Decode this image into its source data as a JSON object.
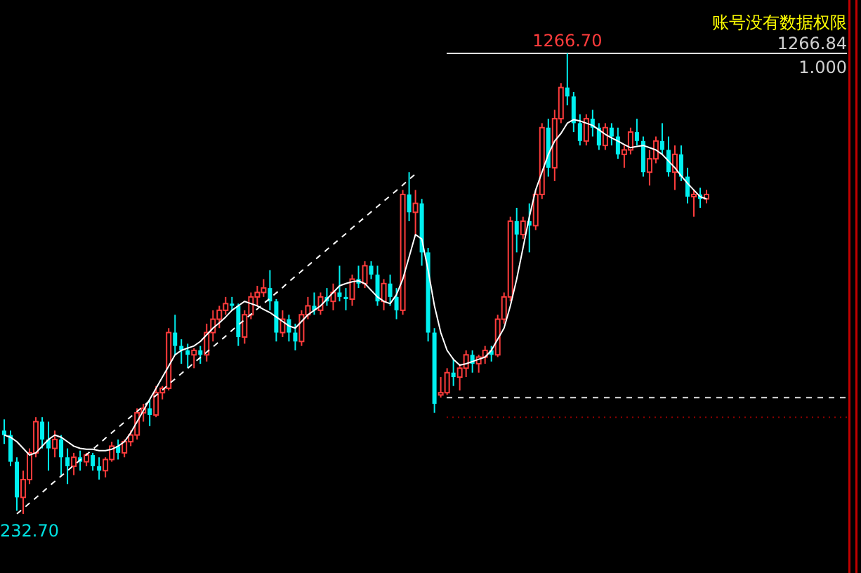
{
  "chart_data": {
    "type": "candlestick",
    "tick_labels": false,
    "categories": [
      null,
      null,
      null,
      null,
      null,
      null,
      null,
      null,
      null,
      null,
      null,
      null,
      null,
      null,
      null,
      null,
      null,
      null,
      null,
      null,
      null,
      null,
      null,
      null,
      null,
      null,
      null,
      null,
      null,
      null,
      null,
      null,
      null,
      null,
      null,
      null,
      null,
      null,
      null,
      null,
      null,
      null,
      null,
      null,
      null,
      null,
      null,
      null,
      null,
      null,
      null,
      null,
      null,
      null,
      null,
      null,
      null,
      null,
      null,
      null,
      null,
      null,
      null,
      null,
      null,
      null,
      null,
      null,
      null,
      null,
      null,
      null,
      null,
      null,
      null,
      null,
      null,
      null,
      null,
      null,
      null,
      null,
      null,
      null,
      null,
      null,
      null,
      null,
      null,
      null,
      null,
      null,
      null,
      null,
      null,
      null,
      null,
      null,
      null,
      null,
      null,
      null,
      null,
      null,
      null,
      null,
      null,
      null,
      null,
      null,
      null,
      null
    ],
    "ohlc": [
      [
        420,
        445,
        390,
        410
      ],
      [
        410,
        420,
        340,
        350
      ],
      [
        350,
        360,
        240,
        270
      ],
      [
        270,
        330,
        232.7,
        310
      ],
      [
        310,
        380,
        300,
        370
      ],
      [
        370,
        450,
        360,
        440
      ],
      [
        440,
        450,
        380,
        400
      ],
      [
        400,
        440,
        330,
        380
      ],
      [
        380,
        420,
        360,
        400
      ],
      [
        400,
        410,
        320,
        360
      ],
      [
        360,
        380,
        300,
        340
      ],
      [
        340,
        370,
        320,
        360
      ],
      [
        360,
        375,
        330,
        350
      ],
      [
        350,
        370,
        340,
        365
      ],
      [
        365,
        370,
        330,
        340
      ],
      [
        340,
        360,
        310,
        330
      ],
      [
        330,
        360,
        315,
        355
      ],
      [
        355,
        395,
        350,
        385
      ],
      [
        385,
        400,
        355,
        370
      ],
      [
        370,
        400,
        360,
        395
      ],
      [
        395,
        420,
        385,
        410
      ],
      [
        410,
        470,
        400,
        460
      ],
      [
        460,
        480,
        440,
        470
      ],
      [
        470,
        490,
        430,
        455
      ],
      [
        455,
        520,
        450,
        505
      ],
      [
        505,
        520,
        490,
        515
      ],
      [
        515,
        650,
        510,
        640
      ],
      [
        640,
        680,
        590,
        610
      ],
      [
        610,
        625,
        570,
        600
      ],
      [
        600,
        615,
        560,
        590
      ],
      [
        590,
        605,
        560,
        600
      ],
      [
        600,
        610,
        570,
        590
      ],
      [
        590,
        660,
        575,
        640
      ],
      [
        640,
        690,
        620,
        670
      ],
      [
        670,
        700,
        650,
        690
      ],
      [
        690,
        720,
        680,
        705
      ],
      [
        705,
        720,
        690,
        700
      ],
      [
        700,
        705,
        610,
        630
      ],
      [
        630,
        690,
        615,
        680
      ],
      [
        680,
        730,
        670,
        720
      ],
      [
        720,
        745,
        700,
        730
      ],
      [
        730,
        760,
        720,
        740
      ],
      [
        740,
        780,
        690,
        710
      ],
      [
        710,
        715,
        620,
        640
      ],
      [
        640,
        690,
        630,
        670
      ],
      [
        670,
        680,
        620,
        640
      ],
      [
        640,
        660,
        600,
        620
      ],
      [
        620,
        690,
        610,
        680
      ],
      [
        680,
        720,
        670,
        700
      ],
      [
        700,
        730,
        680,
        690
      ],
      [
        690,
        730,
        680,
        720
      ],
      [
        720,
        740,
        700,
        710
      ],
      [
        710,
        750,
        690,
        730
      ],
      [
        730,
        790,
        710,
        720
      ],
      [
        720,
        740,
        690,
        715
      ],
      [
        715,
        770,
        700,
        760
      ],
      [
        760,
        790,
        740,
        750
      ],
      [
        750,
        800,
        740,
        790
      ],
      [
        790,
        800,
        760,
        770
      ],
      [
        770,
        790,
        700,
        710
      ],
      [
        710,
        760,
        690,
        750
      ],
      [
        750,
        770,
        700,
        720
      ],
      [
        720,
        740,
        670,
        690
      ],
      [
        690,
        960,
        680,
        950
      ],
      [
        950,
        1000,
        890,
        910
      ],
      [
        910,
        960,
        860,
        930
      ],
      [
        930,
        940,
        790,
        820
      ],
      [
        820,
        830,
        620,
        640
      ],
      [
        640,
        650,
        460,
        480
      ],
      [
        500,
        540,
        494,
        505
      ],
      [
        505,
        560,
        500,
        550
      ],
      [
        550,
        580,
        520,
        540
      ],
      [
        540,
        570,
        510,
        560
      ],
      [
        560,
        600,
        540,
        590
      ],
      [
        590,
        600,
        550,
        570
      ],
      [
        570,
        590,
        550,
        585
      ],
      [
        585,
        610,
        570,
        600
      ],
      [
        600,
        610,
        575,
        590
      ],
      [
        590,
        680,
        585,
        670
      ],
      [
        670,
        730,
        660,
        720
      ],
      [
        720,
        900,
        710,
        890
      ],
      [
        890,
        920,
        820,
        860
      ],
      [
        860,
        900,
        850,
        890
      ],
      [
        890,
        930,
        820,
        880
      ],
      [
        880,
        960,
        870,
        950
      ],
      [
        950,
        1110,
        940,
        1100
      ],
      [
        1100,
        1120,
        990,
        1010
      ],
      [
        1010,
        1140,
        980,
        1120
      ],
      [
        1120,
        1200,
        1110,
        1190
      ],
      [
        1190,
        1266.7,
        1150,
        1170
      ],
      [
        1170,
        1180,
        1090,
        1110
      ],
      [
        1110,
        1130,
        1060,
        1070
      ],
      [
        1070,
        1130,
        1060,
        1120
      ],
      [
        1120,
        1140,
        1080,
        1100
      ],
      [
        1100,
        1110,
        1050,
        1060
      ],
      [
        1060,
        1110,
        1050,
        1100
      ],
      [
        1100,
        1110,
        1060,
        1080
      ],
      [
        1080,
        1100,
        1030,
        1040
      ],
      [
        1040,
        1060,
        1010,
        1050
      ],
      [
        1050,
        1100,
        1040,
        1090
      ],
      [
        1090,
        1120,
        1060,
        1070
      ],
      [
        1070,
        1080,
        990,
        1000
      ],
      [
        1000,
        1050,
        970,
        1030
      ],
      [
        1030,
        1080,
        1020,
        1070
      ],
      [
        1070,
        1110,
        1040,
        1050
      ],
      [
        1050,
        1080,
        990,
        1000
      ],
      [
        1000,
        1060,
        960,
        1040
      ],
      [
        1040,
        1060,
        980,
        990
      ],
      [
        990,
        1010,
        930,
        945
      ],
      [
        945,
        960,
        900,
        950
      ],
      [
        950,
        965,
        920,
        940
      ],
      [
        940,
        960,
        930,
        950
      ]
    ],
    "series": [
      {
        "type": "line",
        "color": "#ffffff",
        "line_style": "solid",
        "values": [
          410,
          405,
          395,
          380,
          365,
          370,
          385,
          400,
          410,
          405,
          395,
          385,
          380,
          378,
          378,
          375,
          375,
          378,
          385,
          395,
          415,
          440,
          465,
          490,
          515,
          540,
          565,
          590,
          600,
          605,
          610,
          620,
          635,
          650,
          662,
          675,
          690,
          700,
          710,
          705,
          700,
          692,
          685,
          675,
          665,
          655,
          650,
          665,
          680,
          690,
          700,
          715,
          730,
          745,
          750,
          754,
          756,
          750,
          735,
          720,
          710,
          705,
          725,
          760,
          810,
          860,
          850,
          780,
          700,
          640,
          600,
          580,
          567,
          570,
          575,
          580,
          585,
          600,
          625,
          650,
          700,
          760,
          830,
          900,
          960,
          1000,
          1040,
          1070,
          1087,
          1110,
          1118,
          1115,
          1110,
          1105,
          1095,
          1085,
          1077,
          1070,
          1062,
          1055,
          1058,
          1060,
          1055,
          1050,
          1040,
          1025,
          1010,
          992,
          975,
          960,
          945,
          940
        ]
      },
      {
        "type": "line",
        "color": "#ffffff",
        "line_style": "dashed",
        "values": [
          null,
          null,
          233,
          245,
          257,
          269,
          281,
          294,
          306,
          318,
          330,
          342,
          354,
          366,
          378,
          390,
          403,
          415,
          427,
          439,
          451,
          463,
          475,
          487,
          499,
          511,
          524,
          536,
          548,
          560,
          572,
          584,
          596,
          608,
          620,
          632,
          645,
          657,
          669,
          681,
          693,
          705,
          717,
          729,
          741,
          754,
          766,
          778,
          790,
          802,
          814,
          826,
          838,
          850,
          862,
          875,
          887,
          899,
          911,
          923,
          935,
          947,
          959,
          971,
          984,
          996,
          null,
          null,
          null,
          null,
          null,
          null,
          null,
          null,
          null,
          null,
          null,
          null,
          null,
          null,
          null,
          null,
          null,
          null,
          null,
          null,
          null,
          null,
          null,
          null,
          null,
          null,
          null,
          null,
          null,
          null,
          null,
          null,
          null,
          null,
          null,
          null,
          null,
          null,
          null,
          null,
          null,
          null,
          null,
          null,
          null,
          null
        ]
      }
    ],
    "ref_lines": [
      {
        "axis": "y",
        "value": 1266.84,
        "label": "1266.84",
        "color": "#e0e0e0",
        "line_style": "solid"
      },
      {
        "axis": "y",
        "value": 494,
        "color": "#e0e0e0",
        "line_style": "dashed"
      },
      {
        "axis": "y",
        "value": 450,
        "color": "#8b0000",
        "line_style": "dotted"
      }
    ],
    "annotations": [
      {
        "text": "1266.70",
        "y": 1266.7
      },
      "232.70",
      "账号没有数据权限",
      "1.000"
    ]
  }
}
